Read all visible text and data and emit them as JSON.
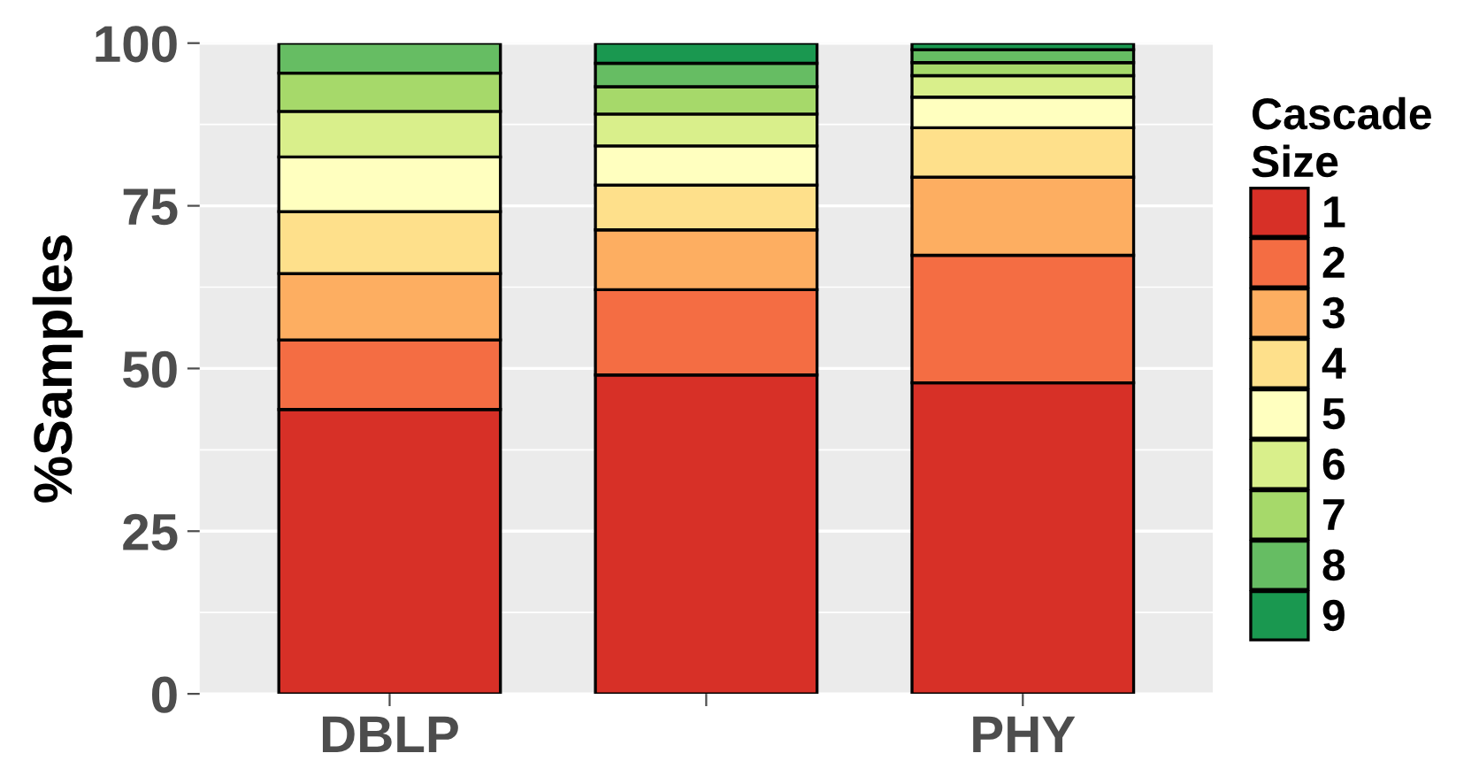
{
  "chart_data": {
    "type": "bar",
    "stacked": true,
    "ylabel": "%Samples",
    "legend_title": "Cascade\nSize",
    "categories": [
      "DBLP",
      null,
      "PHY"
    ],
    "series": [
      {
        "name": "1",
        "color": "#d73027",
        "values": [
          43.7,
          49.0,
          47.8
        ]
      },
      {
        "name": "2",
        "color": "#f46d43",
        "values": [
          10.7,
          13.1,
          19.6
        ]
      },
      {
        "name": "3",
        "color": "#fdae61",
        "values": [
          10.2,
          9.2,
          12.0
        ]
      },
      {
        "name": "4",
        "color": "#fee08b",
        "values": [
          9.5,
          6.9,
          7.6
        ]
      },
      {
        "name": "5",
        "color": "#ffffbf",
        "values": [
          8.4,
          6.0,
          4.7
        ]
      },
      {
        "name": "6",
        "color": "#d9ef8b",
        "values": [
          7.0,
          4.9,
          3.3
        ]
      },
      {
        "name": "7",
        "color": "#a6d96a",
        "values": [
          5.9,
          4.2,
          2.0
        ]
      },
      {
        "name": "8",
        "color": "#66bd63",
        "values": [
          4.6,
          3.6,
          2.0
        ]
      },
      {
        "name": "9",
        "color": "#1a9850",
        "values": [
          null,
          3.1,
          1.0
        ]
      }
    ],
    "ylim": [
      0,
      100
    ],
    "yticks": [
      0,
      25,
      50,
      75,
      100
    ],
    "grid": "y",
    "legend": "right"
  }
}
